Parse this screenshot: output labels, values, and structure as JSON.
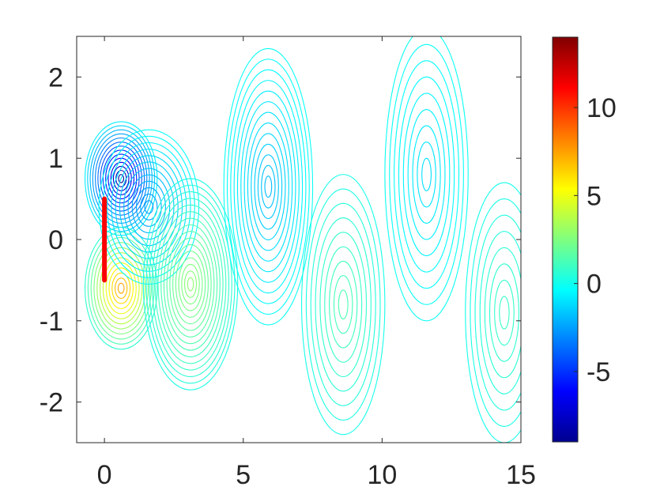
{
  "chart_data": {
    "type": "contour",
    "title": "",
    "xlabel": "",
    "ylabel": "",
    "xlim": [
      -1,
      15
    ],
    "ylim": [
      -2.5,
      2.5
    ],
    "x_ticks": [
      "0",
      "5",
      "10",
      "15"
    ],
    "y_ticks": [
      "-2",
      "-1",
      "0",
      "1",
      "2"
    ],
    "x_tick_values": [
      0,
      5,
      10,
      15
    ],
    "y_tick_values": [
      -2,
      -1,
      0,
      1,
      2
    ],
    "colorbar": {
      "colormap": "jet",
      "range": [
        -9,
        14
      ],
      "ticks": [
        "-5",
        "0",
        "5",
        "10"
      ],
      "tick_values": [
        -5,
        0,
        5,
        10
      ]
    },
    "plate": {
      "x": 0,
      "y_range": [
        -0.5,
        0.5
      ]
    },
    "vortices": [
      {
        "x": 0.6,
        "y": 0.75,
        "rx": 1.3,
        "ry": 0.7,
        "peak": -9,
        "levels": 14
      },
      {
        "x": 0.6,
        "y": -0.6,
        "rx": 1.3,
        "ry": 0.75,
        "peak": 8,
        "levels": 12
      },
      {
        "x": 1.6,
        "y": 0.4,
        "rx": 1.8,
        "ry": 0.95,
        "peak": -3,
        "levels": 12
      },
      {
        "x": 3.1,
        "y": -0.55,
        "rx": 1.7,
        "ry": 1.3,
        "peak": 3,
        "levels": 16
      },
      {
        "x": 5.9,
        "y": 0.65,
        "rx": 1.6,
        "ry": 1.7,
        "peak": -2,
        "levels": 13
      },
      {
        "x": 8.6,
        "y": -0.8,
        "rx": 1.5,
        "ry": 1.6,
        "peak": 1.5,
        "levels": 9
      },
      {
        "x": 11.6,
        "y": 0.8,
        "rx": 1.5,
        "ry": 1.8,
        "peak": -1.2,
        "levels": 9
      },
      {
        "x": 14.4,
        "y": -0.9,
        "rx": 1.4,
        "ry": 1.6,
        "peak": 1,
        "levels": 8
      }
    ]
  }
}
